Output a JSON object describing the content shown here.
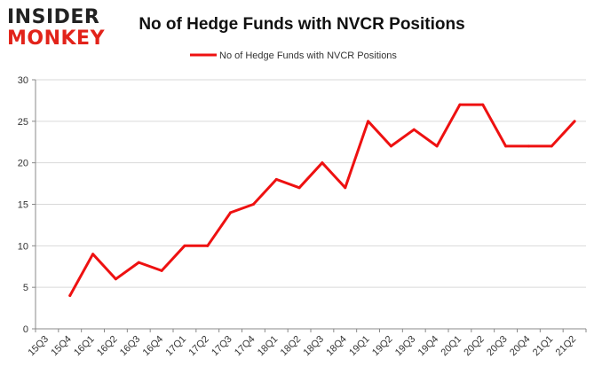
{
  "logo": {
    "line1": "INSIDER",
    "line2": "MONKEY"
  },
  "colors": {
    "series": "#ee1111",
    "grid": "#d9d9d9",
    "axis": "#888888"
  },
  "chart_data": {
    "type": "line",
    "title": "No of Hedge Funds with NVCR Positions",
    "xlabel": "",
    "ylabel": "",
    "ylim": [
      0,
      30
    ],
    "yticks": [
      0,
      5,
      10,
      15,
      20,
      25,
      30
    ],
    "grid": true,
    "legend_position": "top-center",
    "categories": [
      "15Q3",
      "15Q4",
      "16Q1",
      "16Q2",
      "16Q3",
      "16Q4",
      "17Q1",
      "17Q2",
      "17Q3",
      "17Q4",
      "18Q1",
      "18Q2",
      "18Q3",
      "18Q4",
      "19Q1",
      "19Q2",
      "19Q3",
      "19Q4",
      "20Q1",
      "20Q2",
      "20Q3",
      "20Q4",
      "21Q1",
      "21Q2"
    ],
    "series": [
      {
        "name": "No of Hedge Funds with NVCR Positions",
        "values": [
          null,
          4,
          9,
          6,
          8,
          7,
          10,
          10,
          14,
          15,
          18,
          17,
          20,
          17,
          25,
          22,
          24,
          22,
          27,
          27,
          22,
          22,
          22,
          25
        ]
      }
    ]
  }
}
